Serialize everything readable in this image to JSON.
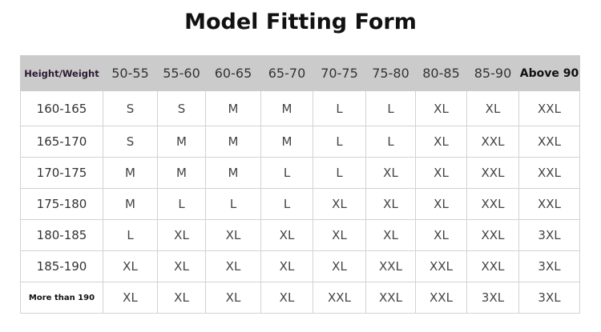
{
  "title": "Model Fitting Form",
  "table": {
    "corner": "Height/Weight",
    "columns": [
      "50-55",
      "55-60",
      "60-65",
      "65-70",
      "70-75",
      "75-80",
      "80-85",
      "85-90",
      "Above 90"
    ],
    "rows": [
      {
        "label": "160-165",
        "cells": [
          "S",
          "S",
          "M",
          "M",
          "L",
          "L",
          "XL",
          "XL",
          "XXL"
        ]
      },
      {
        "label": "165-170",
        "cells": [
          "S",
          "M",
          "M",
          "M",
          "L",
          "L",
          "XL",
          "XXL",
          "XXL"
        ]
      },
      {
        "label": "170-175",
        "cells": [
          "M",
          "M",
          "M",
          "L",
          "L",
          "XL",
          "XL",
          "XXL",
          "XXL"
        ]
      },
      {
        "label": "175-180",
        "cells": [
          "M",
          "L",
          "L",
          "L",
          "XL",
          "XL",
          "XL",
          "XXL",
          "XXL"
        ]
      },
      {
        "label": "180-185",
        "cells": [
          "L",
          "XL",
          "XL",
          "XL",
          "XL",
          "XL",
          "XL",
          "XXL",
          "3XL"
        ]
      },
      {
        "label": "185-190",
        "cells": [
          "XL",
          "XL",
          "XL",
          "XL",
          "XL",
          "XXL",
          "XXL",
          "XXL",
          "3XL"
        ]
      },
      {
        "label": "More than 190",
        "cells": [
          "XL",
          "XL",
          "XL",
          "XL",
          "XXL",
          "XXL",
          "XXL",
          "3XL",
          "3XL"
        ]
      }
    ]
  },
  "colors": {
    "header_bg": "#cbcbcb",
    "grid": "#d2d2d2"
  }
}
